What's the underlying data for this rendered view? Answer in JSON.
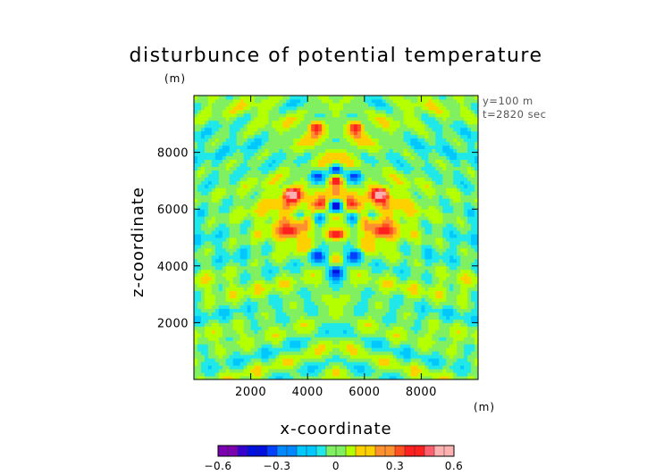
{
  "chart_data": {
    "type": "heatmap",
    "title": "disturbunce of potential temperature",
    "xlabel": "x-coordinate",
    "ylabel": "z-coordinate",
    "x_unit": "(m)",
    "z_unit": "(m)",
    "annotations": [
      "y=100 m",
      "t=2820 sec"
    ],
    "xlim": [
      0,
      10000
    ],
    "ylim": [
      0,
      10000
    ],
    "x_ticks": [
      "2000",
      "4000",
      "6000",
      "8000"
    ],
    "y_ticks": [
      "2000",
      "4000",
      "6000",
      "8000"
    ],
    "x_tick_values": [
      2000,
      4000,
      6000,
      8000
    ],
    "y_tick_values": [
      2000,
      4000,
      6000,
      8000
    ],
    "colorbar": {
      "range": [
        -0.6,
        0.6
      ],
      "tick_labels": [
        "−0.6",
        "−0.3",
        "0",
        "0.3",
        "0.6"
      ],
      "tick_values": [
        -0.6,
        -0.3,
        0,
        0.3,
        0.6
      ],
      "colors": [
        "#7a00b0",
        "#3500d0",
        "#0010e0",
        "#0040ff",
        "#0088ff",
        "#00c8ff",
        "#20e8e8",
        "#80f060",
        "#b4ff00",
        "#ffd000",
        "#ff9030",
        "#ff5020",
        "#ff2020",
        "#ff6070",
        "#ffb0b0"
      ]
    },
    "cold_features": [
      {
        "x": 5000,
        "z": 6100,
        "value": -0.45
      },
      {
        "x": 5000,
        "z": 7400,
        "value": -0.35
      },
      {
        "x": 4300,
        "z": 7200,
        "value": -0.3
      },
      {
        "x": 5700,
        "z": 7200,
        "value": -0.3
      },
      {
        "x": 4400,
        "z": 5700,
        "value": -0.4
      },
      {
        "x": 5600,
        "z": 5700,
        "value": -0.4
      },
      {
        "x": 3800,
        "z": 5800,
        "value": -0.2
      },
      {
        "x": 6200,
        "z": 5800,
        "value": -0.2
      },
      {
        "x": 5000,
        "z": 3800,
        "value": -0.45
      },
      {
        "x": 4300,
        "z": 4400,
        "value": -0.3
      },
      {
        "x": 5700,
        "z": 4400,
        "value": -0.3
      },
      {
        "x": 5000,
        "z": 4900,
        "value": -0.25
      },
      {
        "x": 4600,
        "z": 4800,
        "value": -0.2
      },
      {
        "x": 5400,
        "z": 4800,
        "value": -0.2
      }
    ],
    "warm_features": [
      {
        "x": 3450,
        "z": 6550,
        "value": 0.5
      },
      {
        "x": 6550,
        "z": 6550,
        "value": 0.5
      },
      {
        "x": 3400,
        "z": 5200,
        "value": 0.3
      },
      {
        "x": 6600,
        "z": 5200,
        "value": 0.3
      },
      {
        "x": 5000,
        "z": 5100,
        "value": 0.45
      },
      {
        "x": 5000,
        "z": 7050,
        "value": 0.4
      },
      {
        "x": 5000,
        "z": 6500,
        "value": 0.25
      },
      {
        "x": 4500,
        "z": 6200,
        "value": 0.3
      },
      {
        "x": 5500,
        "z": 6200,
        "value": 0.3
      },
      {
        "x": 4300,
        "z": 8900,
        "value": 0.45
      },
      {
        "x": 5700,
        "z": 8900,
        "value": 0.45
      },
      {
        "x": 5000,
        "z": 4300,
        "value": 0.25
      }
    ]
  }
}
